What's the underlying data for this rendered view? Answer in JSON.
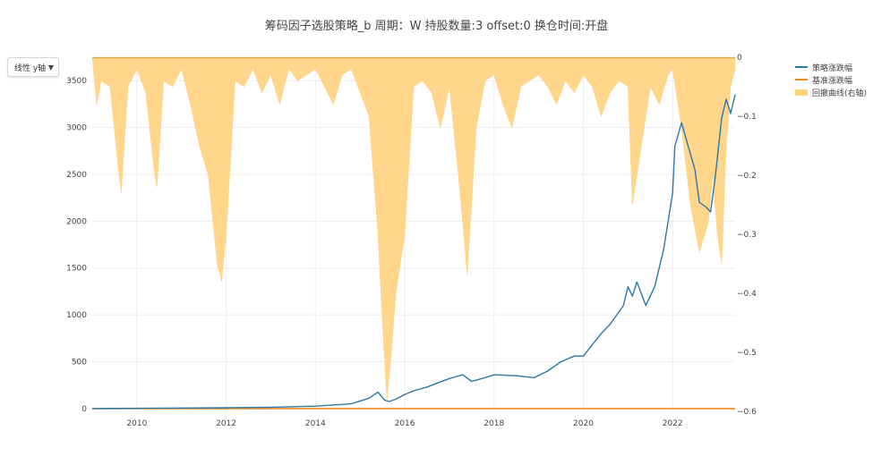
{
  "title": "筹码因子选股策略_b 周期：W 持股数量:3 offset:0 换仓时间:开盘",
  "dropdown": {
    "label": "线性 y轴"
  },
  "colors": {
    "strategy": "#2e78a6",
    "benchmark": "#f08a24",
    "drawdown": "#ffd27f"
  },
  "legend": [
    {
      "name": "策略涨跌幅",
      "kind": "line"
    },
    {
      "name": "基准涨跌幅",
      "kind": "line"
    },
    {
      "name": "回撤曲线(右轴)",
      "kind": "area"
    }
  ],
  "chart_data": {
    "type": "line",
    "title": "筹码因子选股策略_b 周期：W 持股数量:3 offset:0 换仓时间:开盘",
    "x_range": [
      2009.0,
      2023.4
    ],
    "x_ticks": [
      2010,
      2012,
      2014,
      2016,
      2018,
      2020,
      2022
    ],
    "x_tick_labels": [
      "2010",
      "2012",
      "2014",
      "2016",
      "2018",
      "2020",
      "2022"
    ],
    "y_left_range": [
      -30,
      3750
    ],
    "y_left_ticks": [
      0,
      500,
      1000,
      1500,
      2000,
      2500,
      3000,
      3500
    ],
    "y_right_range": [
      -0.6,
      0
    ],
    "y_right_ticks": [
      0,
      -0.1,
      -0.2,
      -0.3,
      -0.4,
      -0.5,
      -0.6
    ],
    "y_right_tick_labels": [
      "0",
      "−0.1",
      "−0.2",
      "−0.3",
      "−0.4",
      "−0.5",
      "−0.6"
    ],
    "grid": true,
    "legend_position": "top-right",
    "series": [
      {
        "name": "策略涨跌幅",
        "axis": "left",
        "x": [
          2009.0,
          2010.0,
          2011.0,
          2012.0,
          2013.0,
          2014.0,
          2014.8,
          2015.2,
          2015.4,
          2015.55,
          2015.65,
          2015.8,
          2016.0,
          2016.2,
          2016.5,
          2017.0,
          2017.3,
          2017.5,
          2017.8,
          2018.0,
          2018.5,
          2018.9,
          2019.2,
          2019.5,
          2019.8,
          2020.0,
          2020.2,
          2020.4,
          2020.6,
          2020.9,
          2021.0,
          2021.1,
          2021.2,
          2021.4,
          2021.6,
          2021.8,
          2022.0,
          2022.05,
          2022.2,
          2022.35,
          2022.5,
          2022.6,
          2022.75,
          2022.85,
          2022.95,
          2023.1,
          2023.2,
          2023.3,
          2023.4
        ],
        "y": [
          0,
          2,
          5,
          8,
          14,
          25,
          50,
          110,
          175,
          90,
          75,
          100,
          150,
          190,
          230,
          320,
          360,
          290,
          330,
          360,
          350,
          330,
          400,
          500,
          560,
          560,
          680,
          800,
          900,
          1100,
          1300,
          1200,
          1350,
          1100,
          1300,
          1700,
          2300,
          2800,
          3050,
          2800,
          2550,
          2200,
          2150,
          2100,
          2450,
          3100,
          3300,
          3150,
          3350
        ]
      },
      {
        "name": "基准涨跌幅",
        "axis": "left",
        "x": [
          2009.0,
          2023.4
        ],
        "y": [
          0,
          0
        ]
      },
      {
        "name": "回撤曲线(右轴)",
        "axis": "right",
        "type": "area",
        "x": [
          2009.0,
          2009.1,
          2009.2,
          2009.4,
          2009.6,
          2009.65,
          2009.8,
          2010.0,
          2010.2,
          2010.4,
          2010.45,
          2010.6,
          2010.8,
          2011.0,
          2011.2,
          2011.4,
          2011.6,
          2011.8,
          2011.9,
          2012.0,
          2012.2,
          2012.4,
          2012.6,
          2012.8,
          2013.0,
          2013.2,
          2013.4,
          2013.6,
          2013.8,
          2014.0,
          2014.2,
          2014.4,
          2014.6,
          2014.8,
          2015.0,
          2015.2,
          2015.4,
          2015.5,
          2015.6,
          2015.7,
          2015.8,
          2016.0,
          2016.2,
          2016.4,
          2016.6,
          2016.8,
          2017.0,
          2017.2,
          2017.3,
          2017.4,
          2017.6,
          2017.8,
          2018.0,
          2018.2,
          2018.4,
          2018.6,
          2018.8,
          2019.0,
          2019.2,
          2019.4,
          2019.6,
          2019.8,
          2020.0,
          2020.2,
          2020.4,
          2020.6,
          2020.8,
          2021.0,
          2021.1,
          2021.3,
          2021.5,
          2021.7,
          2021.9,
          2022.0,
          2022.2,
          2022.4,
          2022.6,
          2022.8,
          2022.9,
          2023.0,
          2023.1,
          2023.2,
          2023.3,
          2023.4
        ],
        "y": [
          0,
          -0.08,
          -0.04,
          -0.05,
          -0.2,
          -0.23,
          -0.05,
          -0.02,
          -0.06,
          -0.2,
          -0.22,
          -0.04,
          -0.05,
          -0.02,
          -0.08,
          -0.15,
          -0.2,
          -0.35,
          -0.38,
          -0.3,
          -0.04,
          -0.05,
          -0.02,
          -0.06,
          -0.03,
          -0.08,
          -0.02,
          -0.04,
          -0.03,
          -0.02,
          -0.05,
          -0.08,
          -0.03,
          -0.02,
          -0.06,
          -0.1,
          -0.3,
          -0.45,
          -0.58,
          -0.5,
          -0.4,
          -0.3,
          -0.05,
          -0.04,
          -0.06,
          -0.12,
          -0.05,
          -0.2,
          -0.28,
          -0.37,
          -0.12,
          -0.04,
          -0.03,
          -0.08,
          -0.12,
          -0.05,
          -0.04,
          -0.03,
          -0.05,
          -0.08,
          -0.04,
          -0.06,
          -0.03,
          -0.05,
          -0.1,
          -0.06,
          -0.04,
          -0.05,
          -0.25,
          -0.15,
          -0.05,
          -0.08,
          -0.03,
          -0.02,
          -0.12,
          -0.25,
          -0.33,
          -0.28,
          -0.2,
          -0.3,
          -0.35,
          -0.15,
          -0.05,
          -0.02
        ]
      }
    ]
  }
}
